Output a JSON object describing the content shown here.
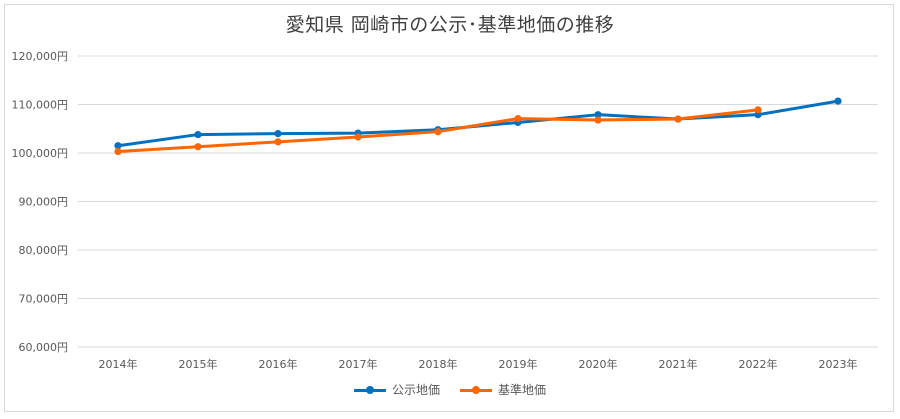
{
  "chart_data": {
    "type": "line",
    "title": "愛知県 岡崎市の公示･基準地価の推移",
    "categories": [
      "2014年",
      "2015年",
      "2016年",
      "2017年",
      "2018年",
      "2019年",
      "2020年",
      "2021年",
      "2022年",
      "2023年"
    ],
    "yticks": [
      "60,000円",
      "70,000円",
      "80,000円",
      "90,000円",
      "100,000円",
      "110,000円",
      "120,000円"
    ],
    "ylim": [
      60000,
      120000
    ],
    "grid": true,
    "legend_position": "bottom",
    "series": [
      {
        "name": "公示地価",
        "color": "#0070c0",
        "values": [
          101500,
          103800,
          104000,
          104100,
          104800,
          106300,
          107900,
          107000,
          107900,
          110700
        ]
      },
      {
        "name": "基準地価",
        "color": "#ff6600",
        "values": [
          100300,
          101300,
          102300,
          103300,
          104400,
          107100,
          106800,
          107000,
          108900,
          null
        ]
      }
    ]
  }
}
